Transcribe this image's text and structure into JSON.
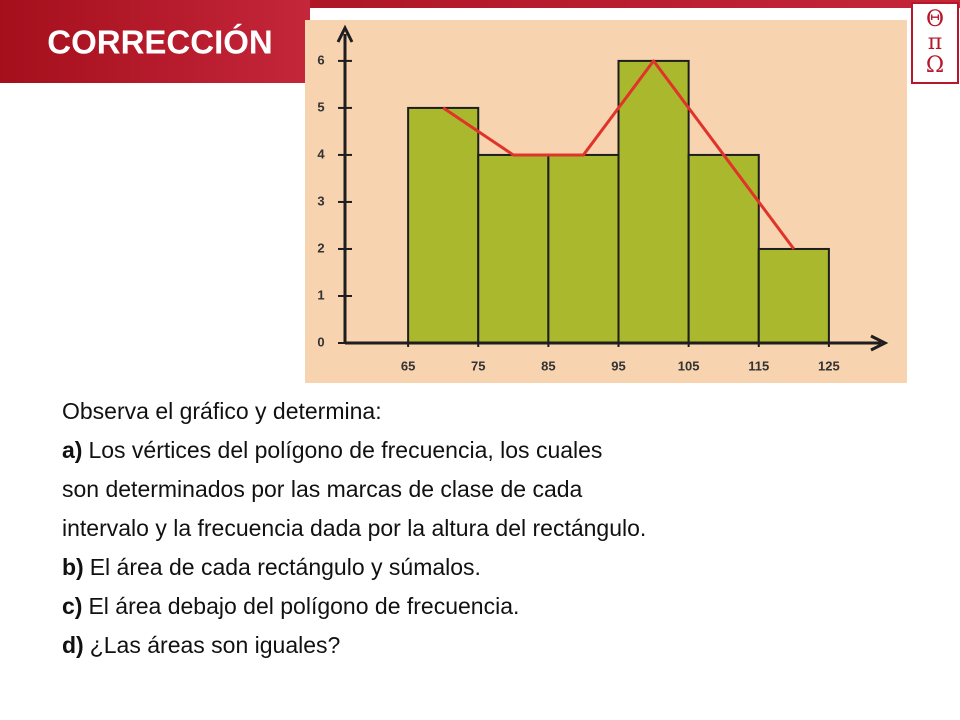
{
  "header": {
    "title": "CORRECCIÓN",
    "logo": [
      "Θ",
      "π",
      "Ω"
    ]
  },
  "chart_data": {
    "type": "histogram",
    "bins": [
      65,
      75,
      85,
      95,
      105,
      115,
      125
    ],
    "values": [
      5,
      4,
      4,
      6,
      4,
      2
    ],
    "color": "#a9b82c",
    "polygon_color": "#e0342b",
    "frequency_polygon": true,
    "xlim": [
      56,
      133
    ],
    "xticks": [
      65,
      75,
      85,
      95,
      105,
      115,
      125
    ],
    "ylim": [
      0,
      6.7
    ],
    "yticks": [
      0,
      1,
      2,
      3,
      4,
      5,
      6
    ]
  },
  "body": {
    "intro": "Observa el gráfico y determina:",
    "items": [
      {
        "label": "a)",
        "lines": [
          "Los vértices del polígono de frecuencia, los cuales",
          "son determinados por las marcas de clase de cada",
          "intervalo y la frecuencia dada por la altura del rectángulo."
        ]
      },
      {
        "label": "b)",
        "lines": [
          "El área de cada rectángulo y súmalos."
        ]
      },
      {
        "label": "c)",
        "lines": [
          "El área debajo del polígono de frecuencia."
        ]
      },
      {
        "label": "d)",
        "lines": [
          "¿Las áreas son iguales?"
        ]
      }
    ]
  }
}
